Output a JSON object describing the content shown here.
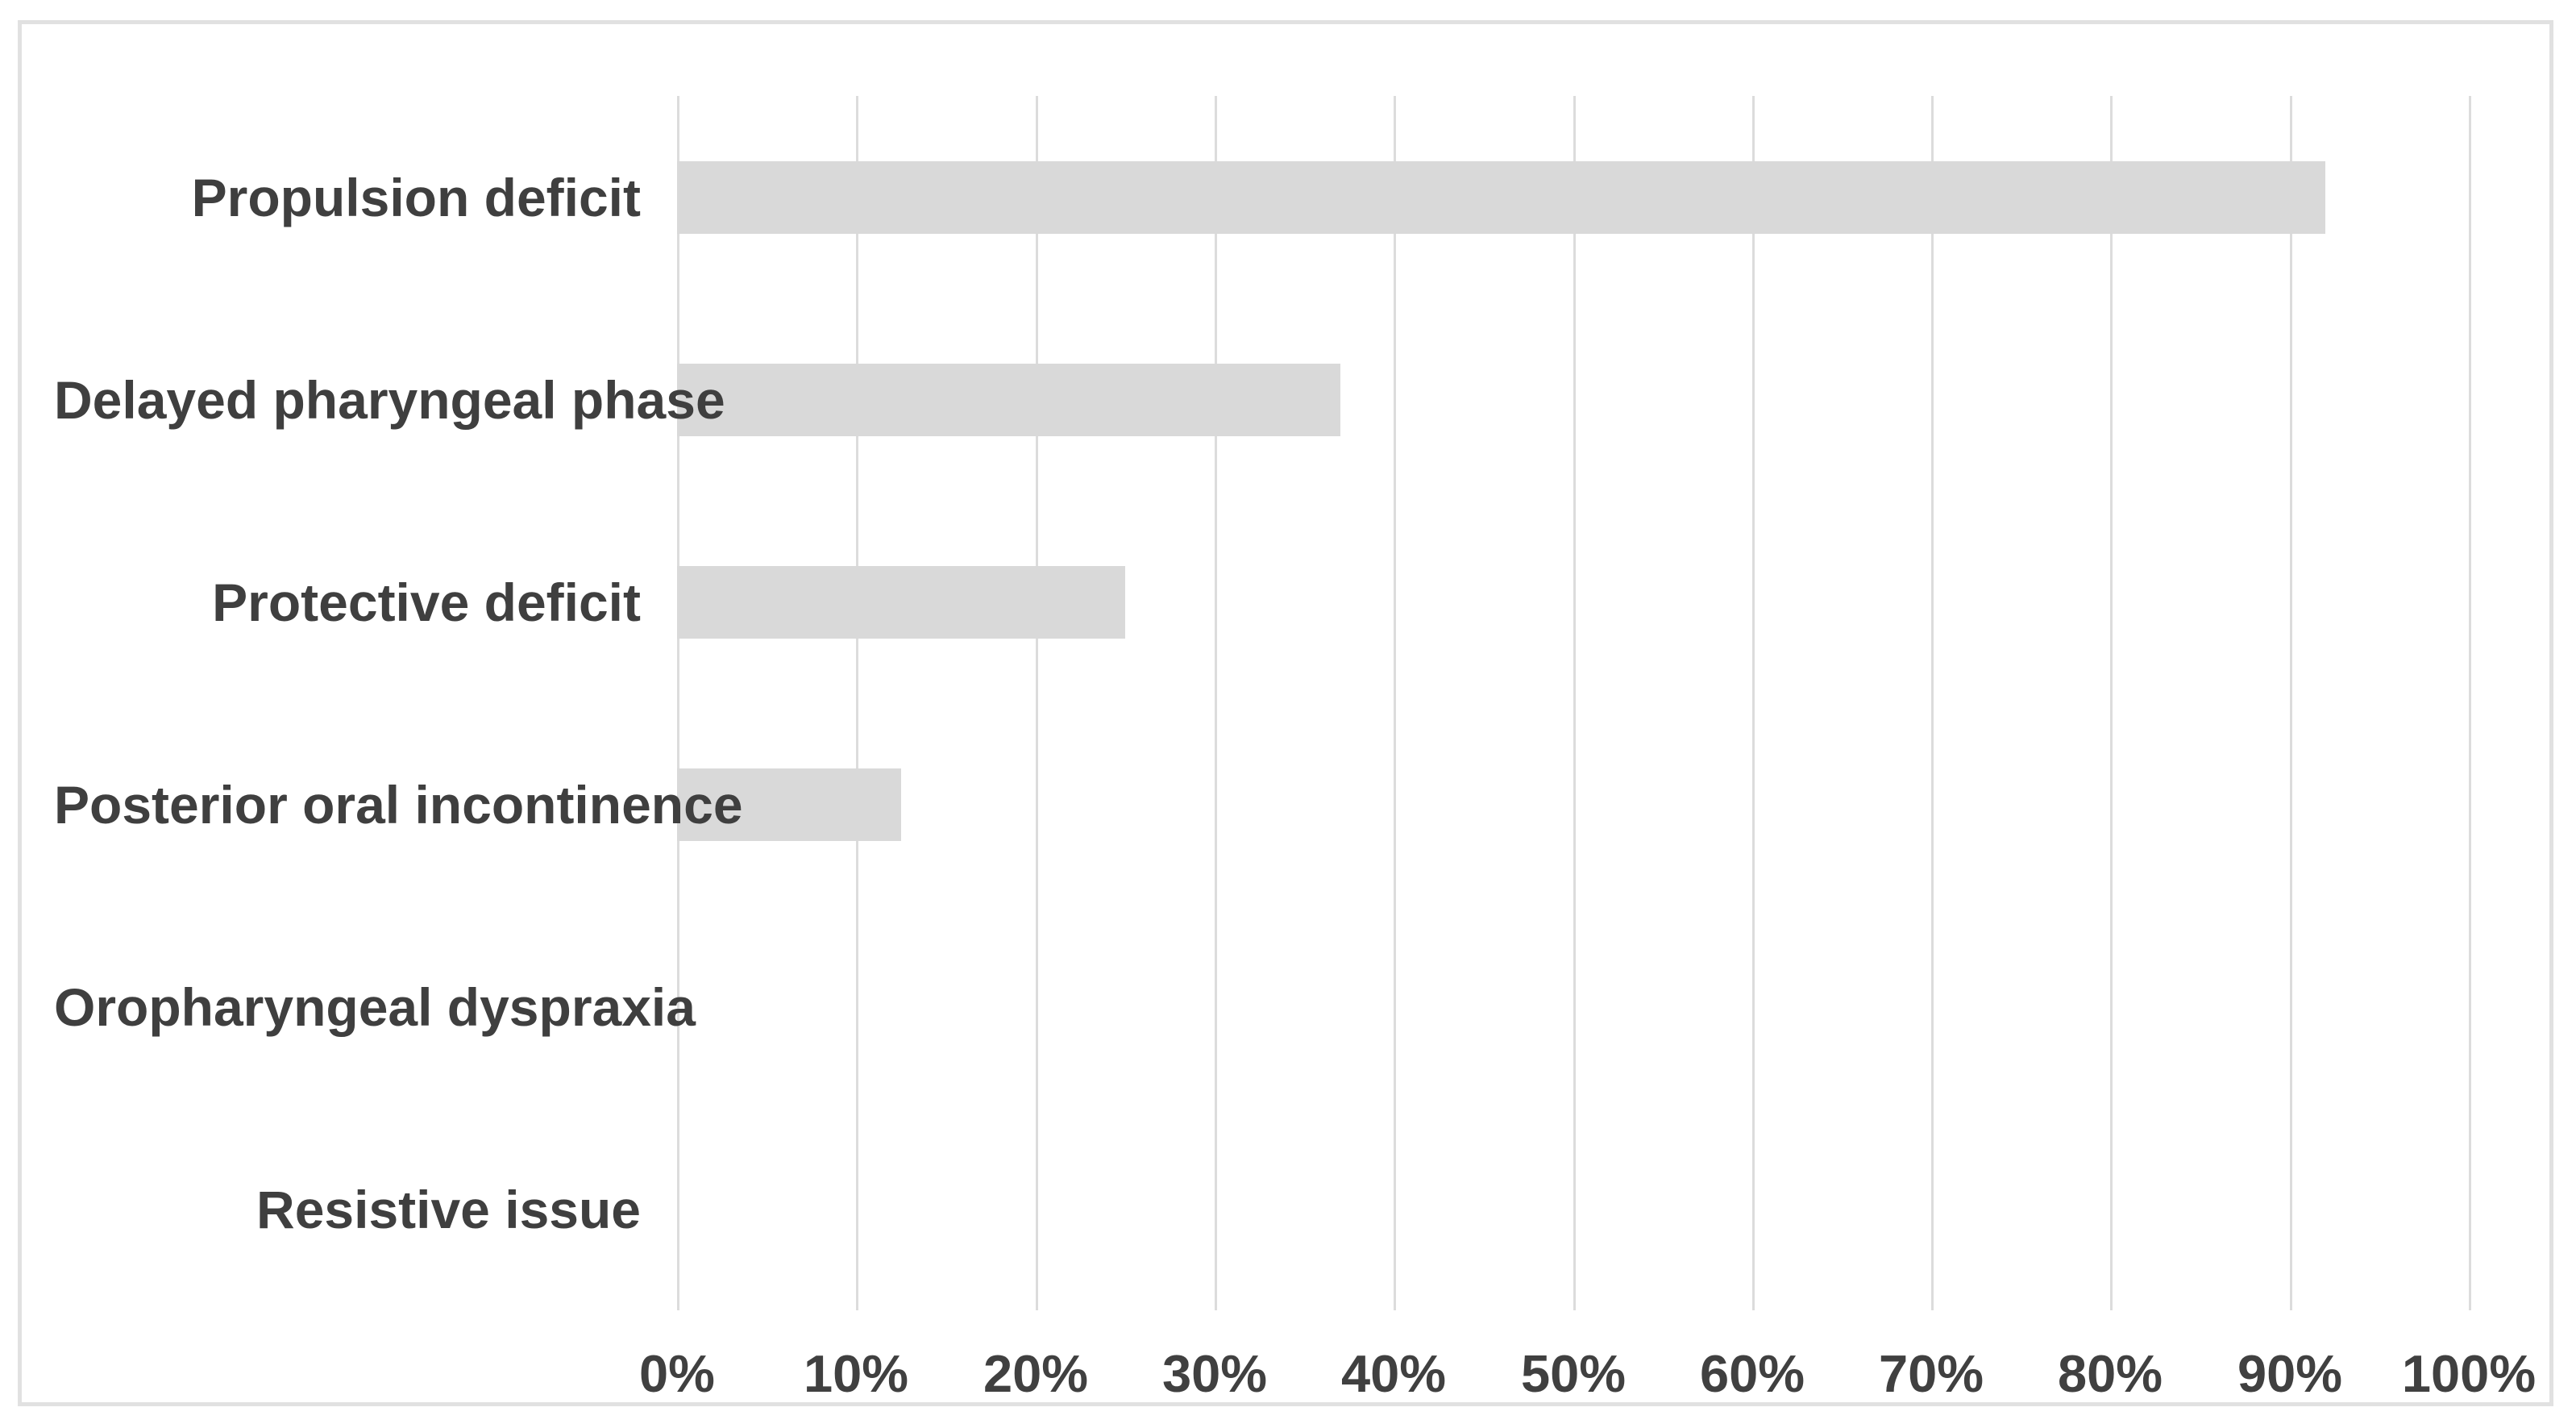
{
  "chart_data": {
    "type": "bar",
    "orientation": "horizontal",
    "title": "",
    "xlabel": "",
    "ylabel": "",
    "categories": [
      "Propulsion deficit",
      "Delayed pharyngeal phase",
      "Protective deficit",
      "Posterior oral incontinence",
      "Oropharyngeal dyspraxia",
      "Resistive issue"
    ],
    "values": [
      92,
      37,
      25,
      12.5,
      0,
      0
    ],
    "unit": "%",
    "xlim": [
      0,
      100
    ],
    "x_tick_step": 10,
    "x_tick_labels": [
      "0%",
      "10%",
      "20%",
      "30%",
      "40%",
      "50%",
      "60%",
      "70%",
      "80%",
      "90%",
      "100%"
    ],
    "grid": "vertical-gridlines-on",
    "legend": "none",
    "colors": {
      "bar": "#d9d9d9",
      "gridline": "#dcdcdc",
      "figure_border": "#e1e1e1",
      "category_label_text": "#3f3f3f",
      "tick_label_text": "#404040",
      "background": "#ffffff"
    }
  }
}
